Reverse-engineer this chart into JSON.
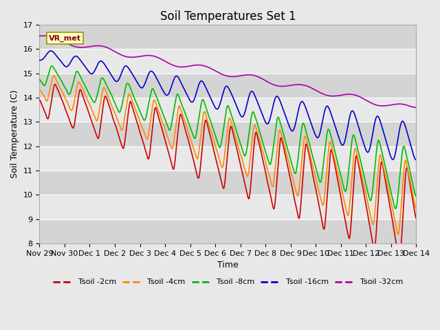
{
  "title": "Soil Temperatures Set 1",
  "xlabel": "Time",
  "ylabel": "Soil Temperature (C)",
  "ylim": [
    8.0,
    17.0
  ],
  "xlim": [
    0,
    15
  ],
  "yticks": [
    8.0,
    9.0,
    10.0,
    11.0,
    12.0,
    13.0,
    14.0,
    15.0,
    16.0,
    17.0
  ],
  "xtick_labels": [
    "Nov 29",
    "Nov 30",
    "Dec 1",
    "Dec 2",
    "Dec 3",
    "Dec 4",
    "Dec 5",
    "Dec 6",
    "Dec 7",
    "Dec 8",
    "Dec 9",
    "Dec 10",
    "Dec 11",
    "Dec 12",
    "Dec 13",
    "Dec 14"
  ],
  "xtick_positions": [
    0,
    1,
    2,
    3,
    4,
    5,
    6,
    7,
    8,
    9,
    10,
    11,
    12,
    13,
    14,
    15
  ],
  "colors": {
    "tsoil_2": "#cc0000",
    "tsoil_4": "#ff8800",
    "tsoil_8": "#00bb00",
    "tsoil_16": "#0000cc",
    "tsoil_32": "#aa00aa"
  },
  "legend_labels": [
    "Tsoil -2cm",
    "Tsoil -4cm",
    "Tsoil -8cm",
    "Tsoil -16cm",
    "Tsoil -32cm"
  ],
  "background_color": "#e8e8e8",
  "band_colors": [
    "#d4d4d4",
    "#e8e8e8"
  ],
  "vr_met_label": "VR_met",
  "title_fontsize": 12,
  "label_fontsize": 9,
  "tick_fontsize": 8,
  "linewidth": 1.2
}
